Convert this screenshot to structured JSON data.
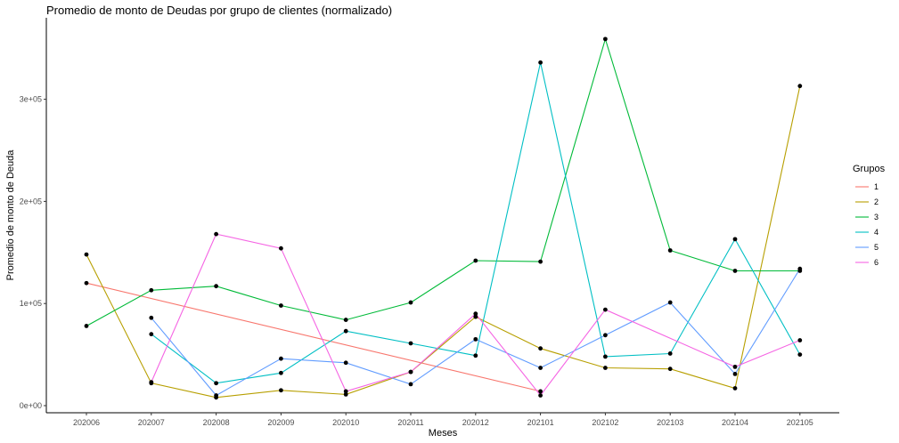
{
  "chart_data": {
    "type": "line",
    "title": "Promedio de monto de Deudas por grupo de clientes (normalizado)",
    "xlabel": "Meses",
    "ylabel": "Promedio de monto de Deuda",
    "x": [
      "202006",
      "202007",
      "202008",
      "202009",
      "202010",
      "202011",
      "202012",
      "202101",
      "202102",
      "202103",
      "202104",
      "202105"
    ],
    "y_ticks": [
      0,
      100000,
      200000,
      300000
    ],
    "y_tick_labels": [
      "0e+00",
      "1e+05",
      "2e+05",
      "3e+05"
    ],
    "ylim": [
      -5000,
      370000
    ],
    "grid": false,
    "legend": {
      "title": "Grupos",
      "position": "right"
    },
    "series": [
      {
        "name": "1",
        "color": "#F8766D",
        "values": [
          120000,
          null,
          null,
          null,
          null,
          null,
          null,
          14000,
          null,
          null,
          null,
          null
        ]
      },
      {
        "name": "2",
        "color": "#B79F00",
        "values": [
          148000,
          22000,
          8000,
          15000,
          11000,
          33000,
          87000,
          56000,
          37000,
          36000,
          17000,
          313000
        ]
      },
      {
        "name": "3",
        "color": "#00BA38",
        "values": [
          78000,
          113000,
          117000,
          98000,
          84000,
          101000,
          142000,
          141000,
          359000,
          152000,
          132000,
          132000
        ]
      },
      {
        "name": "4",
        "color": "#00BFC4",
        "values": [
          null,
          70000,
          22000,
          32000,
          73000,
          61000,
          49000,
          336000,
          48000,
          51000,
          163000,
          50000
        ]
      },
      {
        "name": "5",
        "color": "#619CFF",
        "values": [
          null,
          86000,
          10000,
          46000,
          42000,
          21000,
          65000,
          37000,
          69000,
          101000,
          31000,
          134000
        ]
      },
      {
        "name": "6",
        "color": "#F564E3",
        "values": [
          null,
          23000,
          168000,
          154000,
          14000,
          33000,
          90000,
          10000,
          94000,
          null,
          38000,
          64000
        ]
      }
    ]
  }
}
